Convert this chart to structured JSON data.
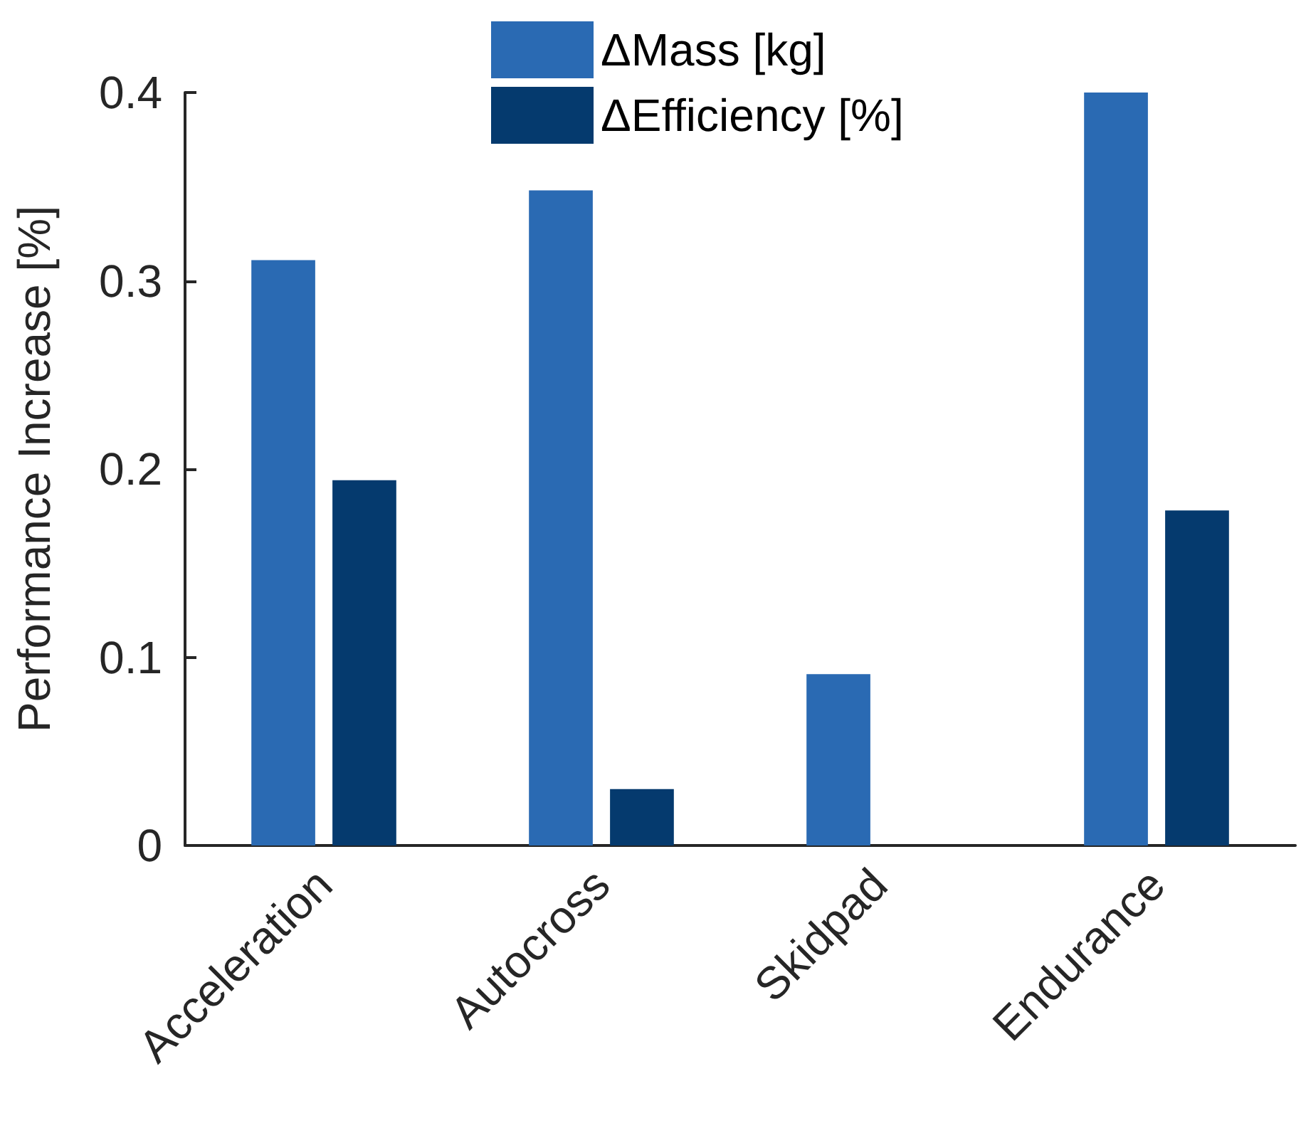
{
  "chart_data": {
    "type": "bar",
    "ylabel": "Performance Increase [%]",
    "categories": [
      "Acceleration",
      "Autocross",
      "Skidpad",
      "Endurance"
    ],
    "series": [
      {
        "name": "ΔMass [kg]",
        "color": "#2a6ab3",
        "values": [
          0.311,
          0.348,
          0.091,
          0.4
        ]
      },
      {
        "name": "ΔEfficiency [%]",
        "color": "#053a6e",
        "values": [
          0.194,
          0.03,
          0,
          0.178
        ]
      }
    ],
    "ylim": [
      0,
      0.4
    ],
    "yticks": [
      0,
      0.1,
      0.2,
      0.3,
      0.4
    ],
    "grid": false,
    "legend": "top"
  }
}
